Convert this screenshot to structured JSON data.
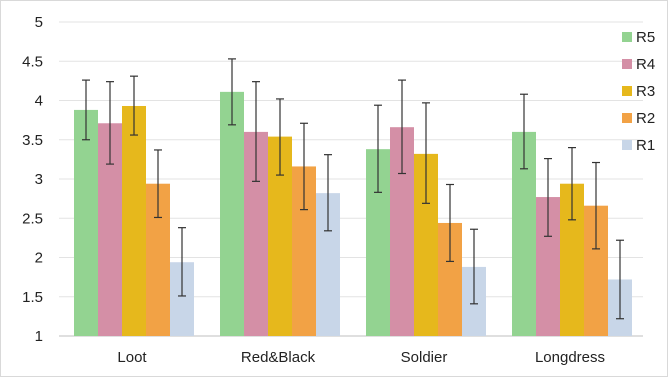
{
  "chart_data": {
    "type": "bar",
    "categories": [
      "Loot",
      "Red&Black",
      "Soldier",
      "Longdress"
    ],
    "series": [
      {
        "name": "R5",
        "color": "#93d391",
        "values": [
          3.88,
          4.11,
          3.38,
          3.6
        ],
        "err_low": [
          3.5,
          3.69,
          2.83,
          3.13
        ],
        "err_high": [
          4.26,
          4.53,
          3.94,
          4.08
        ]
      },
      {
        "name": "R4",
        "color": "#d48fa6",
        "values": [
          3.71,
          3.6,
          3.66,
          2.77
        ],
        "err_low": [
          3.19,
          2.97,
          3.07,
          2.27
        ],
        "err_high": [
          4.24,
          4.24,
          4.26,
          3.26
        ]
      },
      {
        "name": "R3",
        "color": "#e6b81c",
        "values": [
          3.93,
          3.54,
          3.32,
          2.94
        ],
        "err_low": [
          3.56,
          3.05,
          2.69,
          2.48
        ],
        "err_high": [
          4.31,
          4.02,
          3.97,
          3.4
        ]
      },
      {
        "name": "R2",
        "color": "#f2a245",
        "values": [
          2.94,
          3.16,
          2.44,
          2.66
        ],
        "err_low": [
          2.51,
          2.61,
          1.95,
          2.11
        ],
        "err_high": [
          3.37,
          3.71,
          2.93,
          3.21
        ]
      },
      {
        "name": "R1",
        "color": "#c8d6e8",
        "values": [
          1.94,
          2.82,
          1.88,
          1.72
        ],
        "err_low": [
          1.51,
          2.34,
          1.41,
          1.22
        ],
        "err_high": [
          2.38,
          3.31,
          2.36,
          2.22
        ]
      }
    ],
    "yticks": [
      "1",
      "1.5",
      "2",
      "2.5",
      "3",
      "3.5",
      "4",
      "4.5",
      "5"
    ],
    "ylim": [
      1,
      5
    ],
    "legend_order": [
      "R5",
      "R4",
      "R3",
      "R2",
      "R1"
    ],
    "legend_position": "right",
    "grid": true,
    "title": "",
    "xlabel": "",
    "ylabel": ""
  }
}
